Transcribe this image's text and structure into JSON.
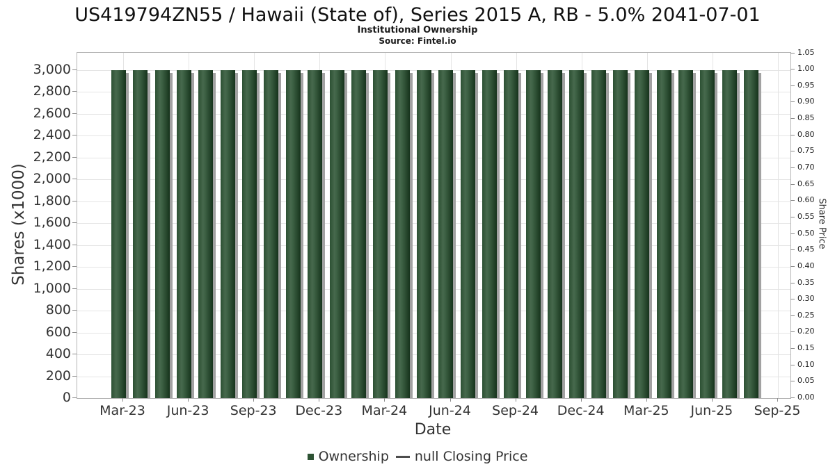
{
  "chart_data": {
    "type": "bar",
    "title": "US419794ZN55 / Hawaii (State of), Series 2015 A, RB - 5.0% 2041-07-01",
    "subtitle": "Institutional Ownership",
    "source": "Source: Fintel.io",
    "xlabel": "Date",
    "categories": [
      "Mar-23",
      "Apr-23",
      "May-23",
      "Jun-23",
      "Jul-23",
      "Aug-23",
      "Sep-23",
      "Oct-23",
      "Nov-23",
      "Dec-23",
      "Jan-24",
      "Feb-24",
      "Mar-24",
      "Apr-24",
      "May-24",
      "Jun-24",
      "Jul-24",
      "Aug-24",
      "Sep-24",
      "Oct-24",
      "Nov-24",
      "Dec-24",
      "Jan-25",
      "Feb-25",
      "Mar-25",
      "Apr-25",
      "May-25",
      "Jun-25",
      "Jul-25",
      "Aug-25"
    ],
    "values": [
      3000,
      3000,
      3000,
      3000,
      3000,
      3000,
      3000,
      3000,
      3000,
      3000,
      3000,
      3000,
      3000,
      3000,
      3000,
      3000,
      3000,
      3000,
      3000,
      3000,
      3000,
      3000,
      3000,
      3000,
      3000,
      3000,
      3000,
      3000,
      3000,
      3000
    ],
    "series_name": "Ownership",
    "left_axis": {
      "label": "Shares (x1000)",
      "min": 0,
      "max": 3000,
      "step": 200,
      "tick_labels": [
        "0",
        "200",
        "400",
        "600",
        "800",
        "1,000",
        "1,200",
        "1,400",
        "1,600",
        "1,800",
        "2,000",
        "2,200",
        "2,400",
        "2,600",
        "2,800",
        "3,000"
      ]
    },
    "right_axis": {
      "label": "Share Price",
      "min": 0,
      "max": 1.05,
      "step": 0.05,
      "tick_labels": [
        "0.00",
        "0.05",
        "0.10",
        "0.15",
        "0.20",
        "0.25",
        "0.30",
        "0.35",
        "0.40",
        "0.45",
        "0.50",
        "0.55",
        "0.60",
        "0.65",
        "0.70",
        "0.75",
        "0.80",
        "0.85",
        "0.90",
        "0.95",
        "1.00",
        "1.05"
      ]
    },
    "x_tick_labels": [
      "Mar-23",
      "Jun-23",
      "Sep-23",
      "Dec-23",
      "Mar-24",
      "Jun-24",
      "Sep-24",
      "Dec-24",
      "Mar-25",
      "Jun-25",
      "Sep-25"
    ],
    "legend": [
      {
        "label": "Ownership",
        "marker": "square",
        "color": "#2d5233"
      },
      {
        "label": "null Closing Price",
        "marker": "line",
        "color": "#4d4d4d"
      }
    ],
    "legend_position": "bottom",
    "grid": true,
    "colors": {
      "bar_gradient": [
        "#2c5033",
        "#47694d",
        "#16331c"
      ],
      "bar_shadow": "#a2a2a2",
      "grid": "#e4e4e4",
      "plot_border": "#b3b3b3",
      "tick": "#8a8a8a",
      "text": "#333333",
      "title_text": "#111111"
    }
  }
}
